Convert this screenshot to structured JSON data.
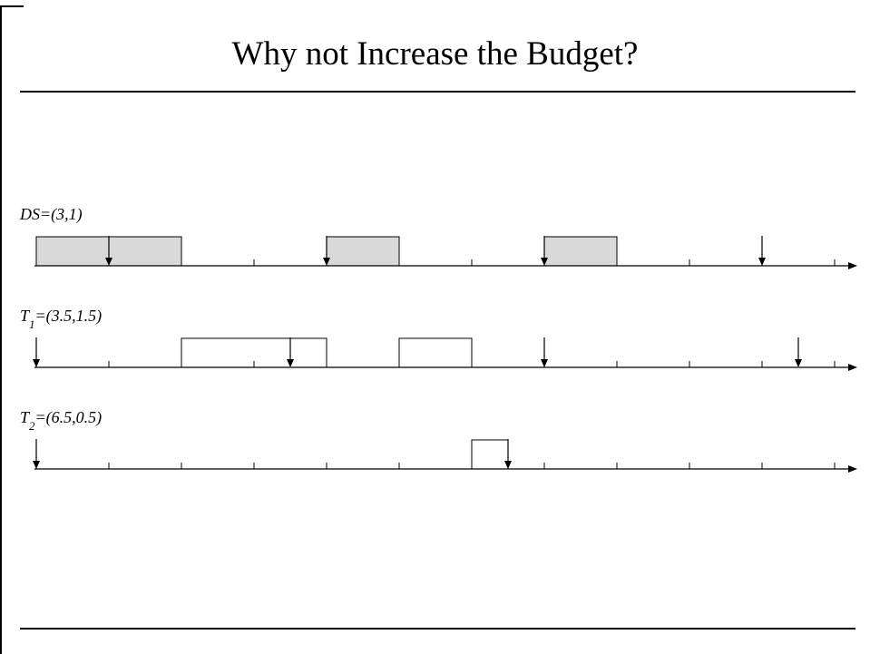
{
  "slide": {
    "title": "Why not Increase the Budget?"
  },
  "timelines": [
    {
      "id": "ds",
      "label_main": "DS",
      "label_sub": "",
      "label_params": "=(3,1)",
      "block_fill": "#d9d9d9",
      "blocks": [
        [
          0,
          2
        ],
        [
          4,
          5
        ],
        [
          7,
          8
        ]
      ],
      "arrivals": [
        1,
        4,
        7,
        10
      ]
    },
    {
      "id": "t1",
      "label_main": "T",
      "label_sub": "1",
      "label_params": "=(3.5,1.5)",
      "block_fill": "#ffffff",
      "blocks": [
        [
          2,
          4
        ],
        [
          5,
          6
        ]
      ],
      "arrivals": [
        0,
        3.5,
        7,
        10.5
      ]
    },
    {
      "id": "t2",
      "label_main": "T",
      "label_sub": "2",
      "label_params": "=(6.5,0.5)",
      "block_fill": "#ffffff",
      "blocks": [
        [
          6,
          6.5
        ]
      ],
      "arrivals": [
        0,
        6.5
      ]
    }
  ],
  "ticks": [
    0,
    1,
    2,
    3,
    4,
    5,
    6,
    7,
    8,
    9,
    10,
    11
  ],
  "colors": {
    "line": "#000000",
    "busy_gray": "#d9d9d9"
  }
}
